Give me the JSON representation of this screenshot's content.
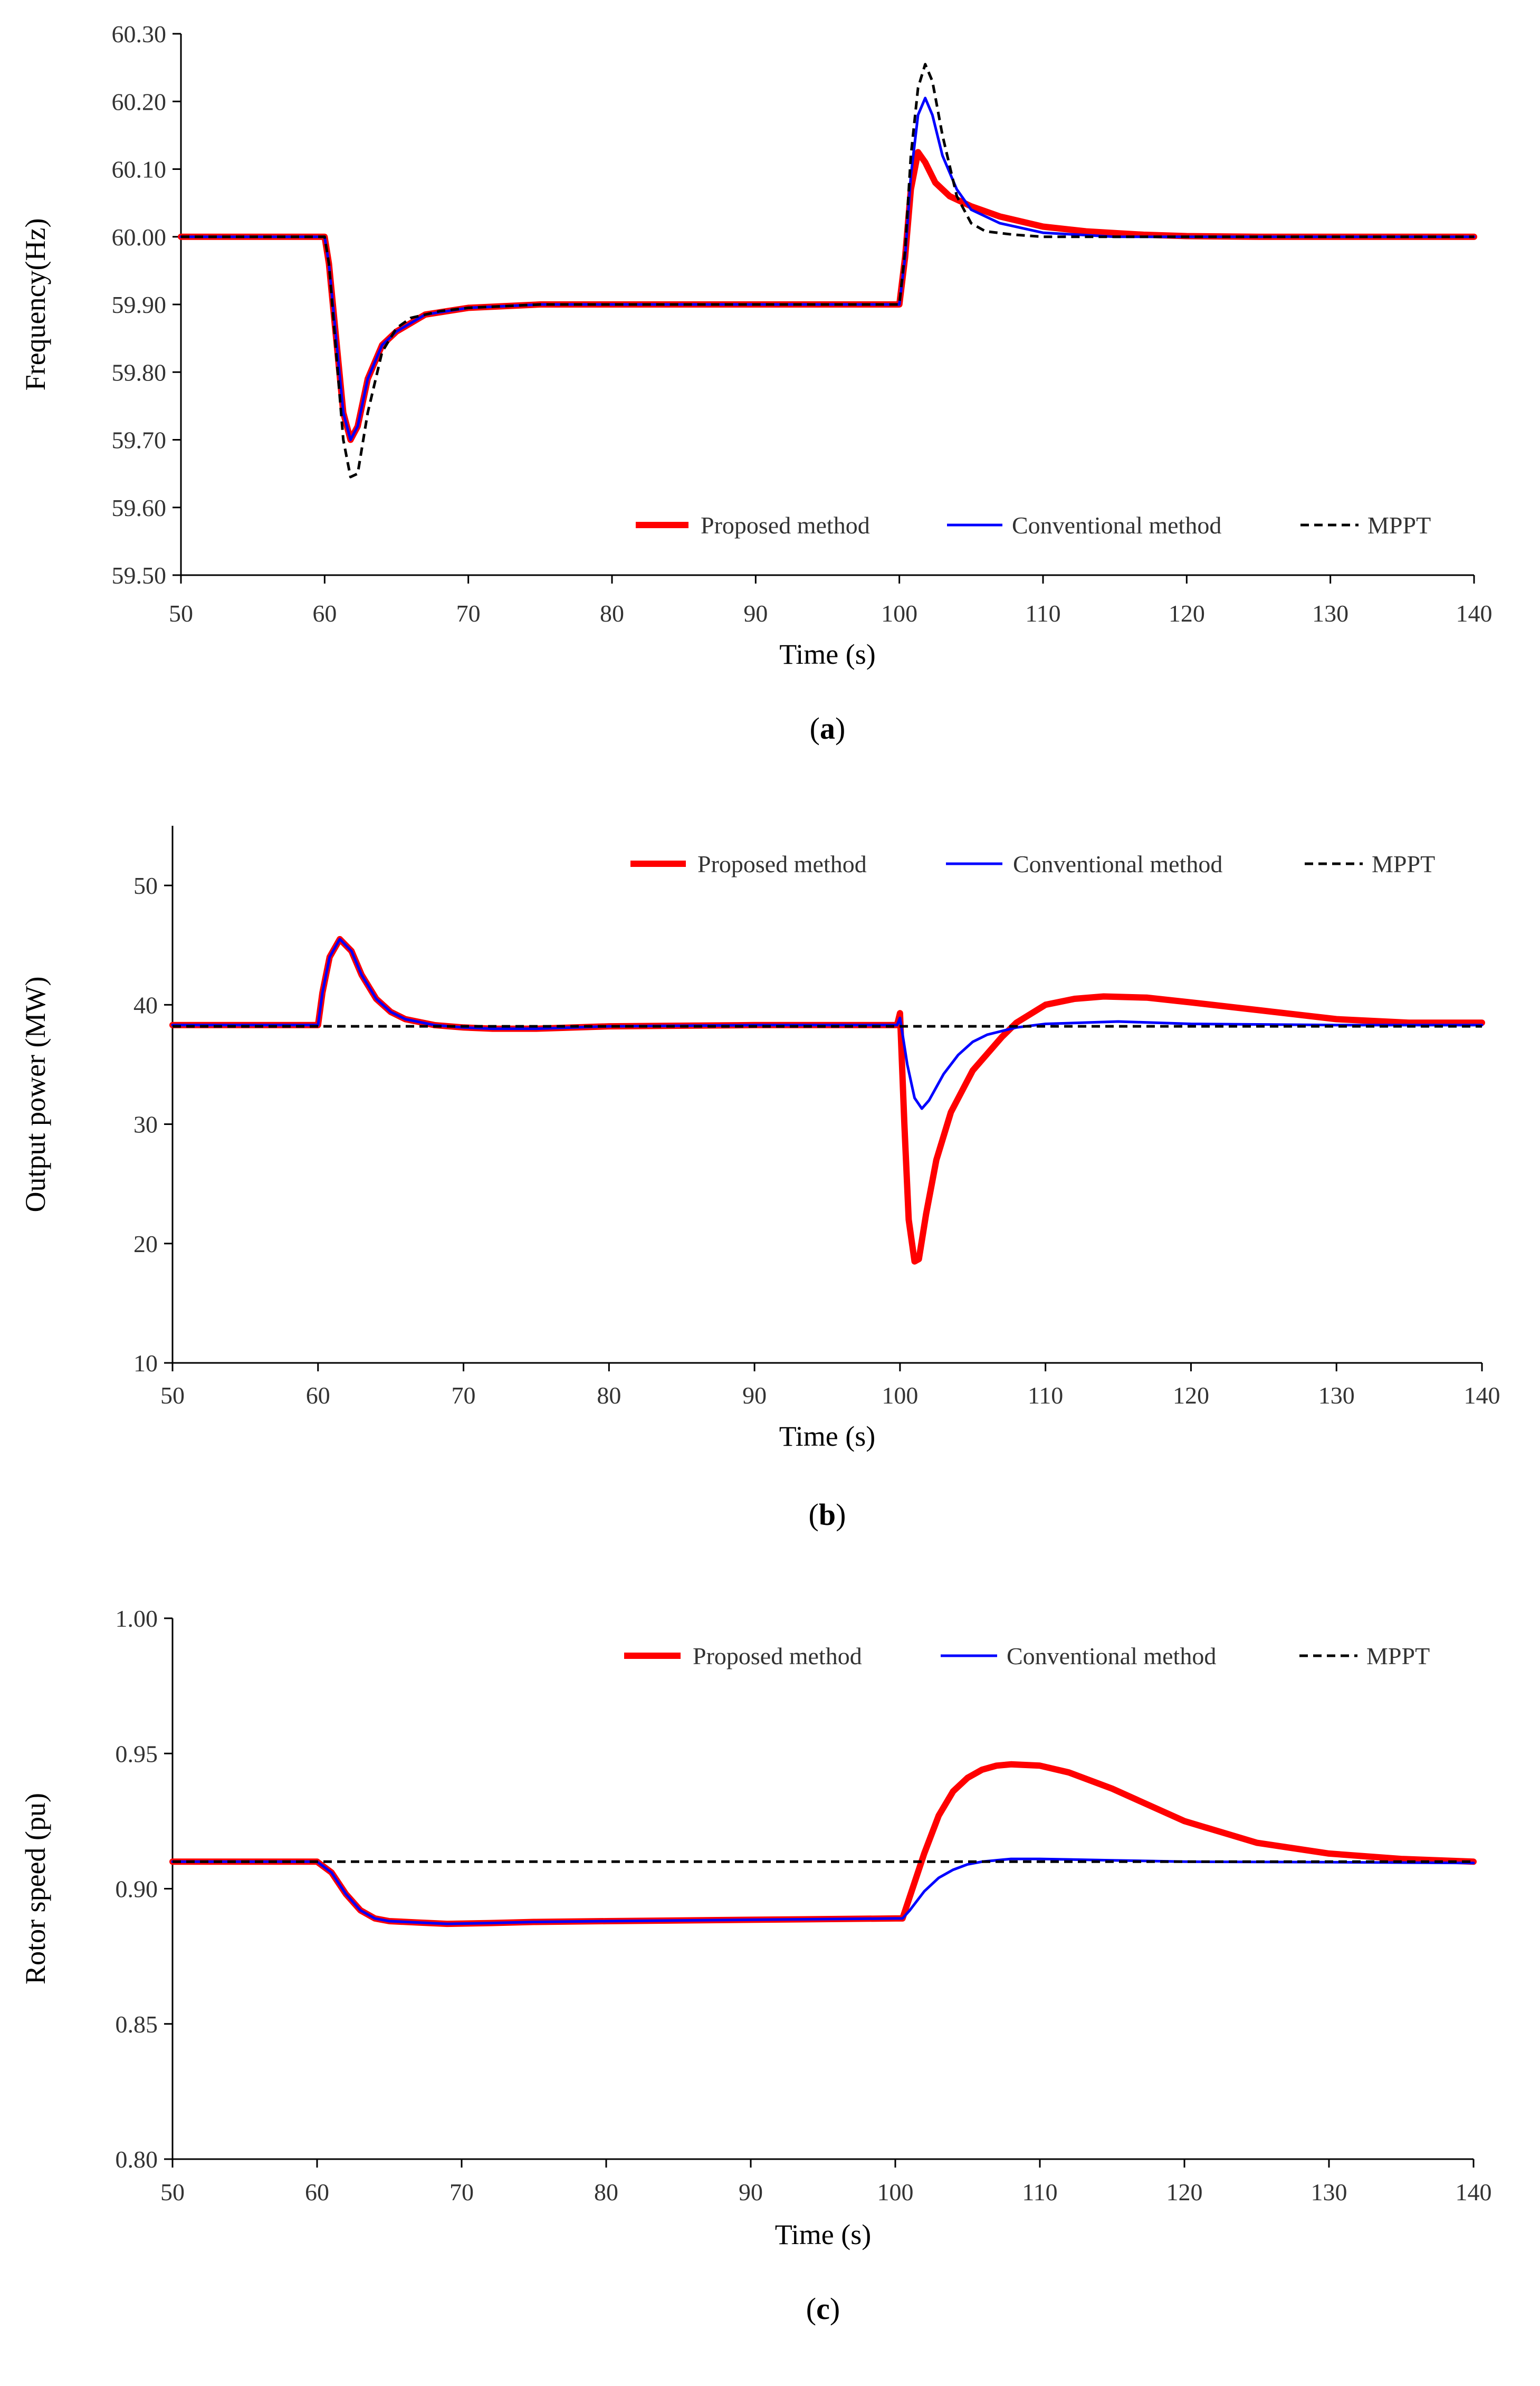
{
  "chart_data": [
    {
      "panel": "a",
      "type": "line",
      "caption_open": "(",
      "caption_letter": "a",
      "caption_close": ")",
      "xlabel": "Time (s)",
      "ylabel": "Frequency(Hz)",
      "xlim": [
        50,
        140
      ],
      "ylim": [
        59.5,
        60.3
      ],
      "xticks": [
        50,
        60,
        70,
        80,
        90,
        100,
        110,
        120,
        130,
        140
      ],
      "xtick_labels": [
        "50",
        "60",
        "70",
        "80",
        "90",
        "100",
        "110",
        "120",
        "130",
        "140"
      ],
      "yticks": [
        59.5,
        59.6,
        59.7,
        59.8,
        59.9,
        60.0,
        60.1,
        60.2,
        60.3
      ],
      "ytick_labels": [
        "59.50",
        "59.60",
        "59.70",
        "59.80",
        "59.90",
        "60.00",
        "60.10",
        "60.20",
        "60.30"
      ],
      "legend": [
        "Proposed method",
        "Conventional method",
        "MPPT"
      ],
      "series": [
        {
          "name": "Proposed method",
          "color": "#ff0000",
          "style": "solid",
          "width": 12,
          "x": [
            50,
            60,
            60.3,
            60.8,
            61.3,
            61.8,
            62.3,
            63,
            64,
            65,
            67,
            70,
            75,
            80,
            90,
            100,
            100.4,
            100.8,
            101.3,
            101.8,
            102.5,
            103.5,
            105,
            107,
            110,
            113,
            117,
            120,
            125,
            130,
            140
          ],
          "y": [
            60.0,
            60.0,
            59.96,
            59.85,
            59.74,
            59.7,
            59.72,
            59.79,
            59.84,
            59.86,
            59.885,
            59.895,
            59.9,
            59.9,
            59.9,
            59.9,
            59.97,
            60.07,
            60.125,
            60.11,
            60.08,
            60.06,
            60.045,
            60.03,
            60.015,
            60.008,
            60.003,
            60.001,
            60.0,
            60.0,
            60.0
          ]
        },
        {
          "name": "Conventional method",
          "color": "#0000ff",
          "style": "solid",
          "width": 5,
          "x": [
            50,
            60,
            60.3,
            60.8,
            61.3,
            61.8,
            62.3,
            63,
            64,
            65,
            67,
            70,
            75,
            80,
            90,
            100,
            100.4,
            100.8,
            101.3,
            101.8,
            102.3,
            103,
            104,
            105,
            107,
            110,
            115,
            120,
            130,
            140
          ],
          "y": [
            60.0,
            60.0,
            59.96,
            59.85,
            59.74,
            59.7,
            59.72,
            59.79,
            59.84,
            59.86,
            59.885,
            59.895,
            59.9,
            59.9,
            59.9,
            59.9,
            59.97,
            60.09,
            60.18,
            60.205,
            60.18,
            60.12,
            60.07,
            60.04,
            60.02,
            60.006,
            60.0,
            60.0,
            60.0,
            60.0
          ]
        },
        {
          "name": "MPPT",
          "color": "#000000",
          "style": "dashed",
          "width": 5,
          "x": [
            50,
            60,
            60.3,
            60.8,
            61.3,
            61.8,
            62.3,
            63,
            64,
            65,
            66,
            68,
            70,
            75,
            80,
            90,
            100,
            100.4,
            100.8,
            101.3,
            101.8,
            102.3,
            103,
            104,
            105,
            106,
            108,
            110,
            120,
            130,
            140
          ],
          "y": [
            60.0,
            60.0,
            59.96,
            59.83,
            59.7,
            59.645,
            59.65,
            59.74,
            59.83,
            59.865,
            59.88,
            59.89,
            59.895,
            59.9,
            59.9,
            59.9,
            59.9,
            59.98,
            60.12,
            60.22,
            60.255,
            60.23,
            60.15,
            60.06,
            60.02,
            60.008,
            60.003,
            60.0,
            60.0,
            60.0,
            60.0
          ]
        }
      ]
    },
    {
      "panel": "b",
      "type": "line",
      "caption_open": "(",
      "caption_letter": "b",
      "caption_close": ")",
      "xlabel": "Time (s)",
      "ylabel": "Output power (MW)",
      "xlim": [
        50,
        140
      ],
      "ylim": [
        10,
        55
      ],
      "xticks": [
        50,
        60,
        70,
        80,
        90,
        100,
        110,
        120,
        130,
        140
      ],
      "xtick_labels": [
        "50",
        "60",
        "70",
        "80",
        "90",
        "100",
        "110",
        "120",
        "130",
        "140"
      ],
      "yticks": [
        10,
        20,
        30,
        40,
        50
      ],
      "ytick_labels": [
        "10",
        "20",
        "30",
        "40",
        "50"
      ],
      "legend": [
        "Proposed method",
        "Conventional method",
        "MPPT"
      ],
      "series": [
        {
          "name": "Proposed method",
          "color": "#ff0000",
          "style": "solid",
          "width": 12,
          "x": [
            50,
            60,
            60.3,
            60.8,
            61.5,
            62.3,
            63,
            64,
            65,
            66,
            68,
            70,
            72,
            75,
            80,
            90,
            99.8,
            100,
            100.3,
            100.6,
            101,
            101.3,
            101.8,
            102.5,
            103.5,
            105,
            107,
            108,
            110,
            112,
            114,
            117,
            120,
            125,
            130,
            135,
            140
          ],
          "y": [
            38.3,
            38.3,
            41,
            44,
            45.5,
            44.5,
            42.5,
            40.5,
            39.4,
            38.8,
            38.3,
            38.1,
            38.0,
            38.0,
            38.2,
            38.3,
            38.3,
            39.3,
            30,
            22,
            18.5,
            18.7,
            22.5,
            27,
            31,
            34.5,
            37.3,
            38.5,
            40,
            40.5,
            40.7,
            40.6,
            40.2,
            39.5,
            38.8,
            38.5,
            38.5
          ]
        },
        {
          "name": "Conventional method",
          "color": "#0000ff",
          "style": "solid",
          "width": 5,
          "x": [
            50,
            60,
            60.3,
            60.8,
            61.5,
            62.3,
            63,
            64,
            65,
            66,
            68,
            70,
            72,
            75,
            80,
            90,
            99.8,
            100,
            100.5,
            101,
            101.5,
            102,
            103,
            104,
            105,
            106,
            108,
            110,
            115,
            120,
            130,
            140
          ],
          "y": [
            38.3,
            38.3,
            41,
            44,
            45.5,
            44.5,
            42.5,
            40.5,
            39.4,
            38.8,
            38.3,
            38.1,
            38.0,
            38.0,
            38.2,
            38.3,
            38.3,
            38.9,
            35,
            32.2,
            31.3,
            32,
            34.2,
            35.8,
            36.9,
            37.5,
            38.1,
            38.4,
            38.6,
            38.4,
            38.3,
            38.3
          ]
        },
        {
          "name": "MPPT",
          "color": "#000000",
          "style": "dashed",
          "width": 5,
          "x": [
            50,
            140
          ],
          "y": [
            38.2,
            38.2
          ]
        }
      ]
    },
    {
      "panel": "c",
      "type": "line",
      "caption_open": "(",
      "caption_letter": "c",
      "caption_close": ")",
      "xlabel": "Time (s)",
      "ylabel": "Rotor speed (pu)",
      "xlim": [
        50,
        140
      ],
      "ylim": [
        0.8,
        1.0
      ],
      "xticks": [
        50,
        60,
        70,
        80,
        90,
        100,
        110,
        120,
        130,
        140
      ],
      "xtick_labels": [
        "50",
        "60",
        "70",
        "80",
        "90",
        "100",
        "110",
        "120",
        "130",
        "140"
      ],
      "yticks": [
        0.8,
        0.85,
        0.9,
        0.95,
        1.0
      ],
      "ytick_labels": [
        "0.80",
        "0.85",
        "0.90",
        "0.95",
        "1.00"
      ],
      "legend": [
        "Proposed method",
        "Conventional method",
        "MPPT"
      ],
      "series": [
        {
          "name": "Proposed method",
          "color": "#ff0000",
          "style": "solid",
          "width": 12,
          "x": [
            50,
            60,
            61,
            62,
            63,
            64,
            65,
            67,
            69,
            72,
            75,
            80,
            90,
            100,
            100.5,
            101,
            102,
            103,
            104,
            105,
            106,
            107,
            108,
            110,
            112,
            115,
            120,
            125,
            130,
            135,
            140
          ],
          "y": [
            0.91,
            0.91,
            0.906,
            0.898,
            0.892,
            0.889,
            0.888,
            0.8875,
            0.887,
            0.8873,
            0.8877,
            0.888,
            0.8885,
            0.889,
            0.889,
            0.897,
            0.913,
            0.927,
            0.936,
            0.941,
            0.944,
            0.9455,
            0.946,
            0.9455,
            0.943,
            0.937,
            0.925,
            0.917,
            0.913,
            0.911,
            0.91
          ]
        },
        {
          "name": "Conventional method",
          "color": "#0000ff",
          "style": "solid",
          "width": 5,
          "x": [
            50,
            60,
            61,
            62,
            63,
            64,
            65,
            67,
            69,
            72,
            75,
            80,
            90,
            100,
            100.5,
            101,
            102,
            103,
            104,
            105,
            106,
            108,
            110,
            115,
            120,
            130,
            140
          ],
          "y": [
            0.91,
            0.91,
            0.906,
            0.898,
            0.892,
            0.889,
            0.888,
            0.8875,
            0.887,
            0.8873,
            0.8877,
            0.888,
            0.8885,
            0.889,
            0.889,
            0.892,
            0.899,
            0.904,
            0.907,
            0.909,
            0.91,
            0.911,
            0.911,
            0.9105,
            0.91,
            0.9098,
            0.9095
          ]
        },
        {
          "name": "MPPT",
          "color": "#000000",
          "style": "dashed",
          "width": 5,
          "x": [
            50,
            140
          ],
          "y": [
            0.91,
            0.91
          ]
        }
      ]
    }
  ]
}
